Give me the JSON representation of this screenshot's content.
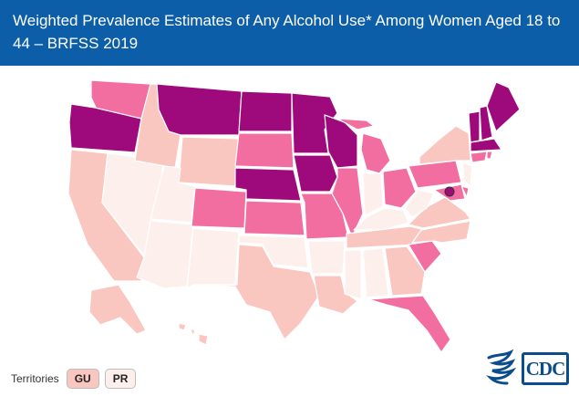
{
  "header": {
    "title": "Weighted Prevalence Estimates of Any Alcohol Use* Among Women Aged 18 to 44 – BRFSS 2019"
  },
  "colors": {
    "level_1": "#fdf0ec",
    "level_2": "#f9c6c0",
    "level_3": "#f26ea0",
    "level_4": "#e32a88",
    "level_5": "#9e0a7c",
    "header_bg": "#0d5ea8",
    "cdc_blue": "#0b4c8c"
  },
  "map": {
    "states": [
      {
        "abbr": "WA",
        "level": 3
      },
      {
        "abbr": "OR",
        "level": 5
      },
      {
        "abbr": "CA",
        "level": 2
      },
      {
        "abbr": "NV",
        "level": 1
      },
      {
        "abbr": "ID",
        "level": 2
      },
      {
        "abbr": "MT",
        "level": 5
      },
      {
        "abbr": "WY",
        "level": 2
      },
      {
        "abbr": "UT",
        "level": 1
      },
      {
        "abbr": "AZ",
        "level": 1
      },
      {
        "abbr": "CO",
        "level": 3
      },
      {
        "abbr": "NM",
        "level": 1
      },
      {
        "abbr": "ND",
        "level": 5
      },
      {
        "abbr": "SD",
        "level": 3
      },
      {
        "abbr": "NE",
        "level": 5
      },
      {
        "abbr": "KS",
        "level": 3
      },
      {
        "abbr": "OK",
        "level": 1
      },
      {
        "abbr": "TX",
        "level": 2
      },
      {
        "abbr": "MN",
        "level": 5
      },
      {
        "abbr": "IA",
        "level": 5
      },
      {
        "abbr": "MO",
        "level": 3
      },
      {
        "abbr": "AR",
        "level": 1
      },
      {
        "abbr": "LA",
        "level": 2
      },
      {
        "abbr": "WI",
        "level": 5
      },
      {
        "abbr": "IL",
        "level": 3
      },
      {
        "abbr": "MI",
        "level": 3
      },
      {
        "abbr": "IN",
        "level": 1
      },
      {
        "abbr": "OH",
        "level": 3
      },
      {
        "abbr": "KY",
        "level": 1
      },
      {
        "abbr": "TN",
        "level": 2
      },
      {
        "abbr": "MS",
        "level": 1
      },
      {
        "abbr": "AL",
        "level": 1
      },
      {
        "abbr": "GA",
        "level": 2
      },
      {
        "abbr": "FL",
        "level": 3
      },
      {
        "abbr": "SC",
        "level": 3
      },
      {
        "abbr": "NC",
        "level": 2
      },
      {
        "abbr": "VA",
        "level": 2
      },
      {
        "abbr": "WV",
        "level": 1
      },
      {
        "abbr": "PA",
        "level": 3
      },
      {
        "abbr": "NY",
        "level": 2
      },
      {
        "abbr": "VT",
        "level": 5
      },
      {
        "abbr": "NH",
        "level": 5
      },
      {
        "abbr": "ME",
        "level": 5
      },
      {
        "abbr": "MA",
        "level": 5
      },
      {
        "abbr": "CT",
        "level": 3
      },
      {
        "abbr": "RI",
        "level": 3
      },
      {
        "abbr": "NJ",
        "level": 1
      },
      {
        "abbr": "DE",
        "level": 3
      },
      {
        "abbr": "MD",
        "level": 3
      },
      {
        "abbr": "DC",
        "level": 5
      },
      {
        "abbr": "AK",
        "level": 2
      },
      {
        "abbr": "HI",
        "level": 2
      }
    ]
  },
  "territories": {
    "label": "Territories",
    "buttons": [
      {
        "label": "GU",
        "level": 2
      },
      {
        "label": "PR",
        "level": 1
      }
    ]
  },
  "logo": {
    "text": "CDC",
    "icon": "hhs-eagle-icon"
  }
}
